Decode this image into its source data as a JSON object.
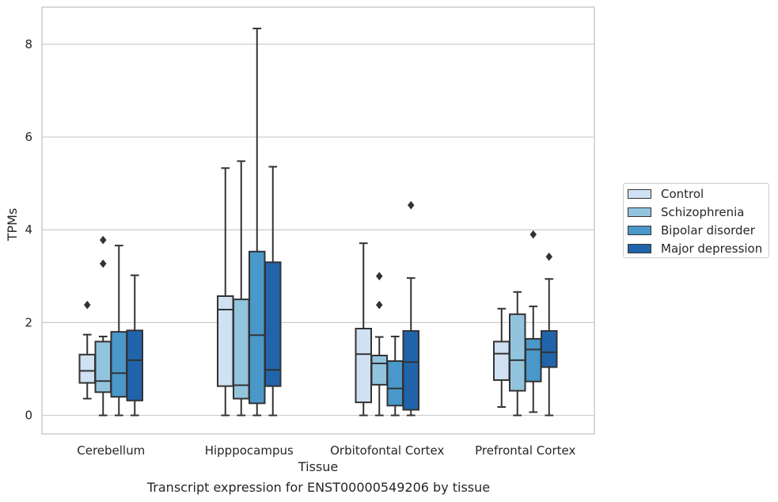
{
  "chart_data": {
    "type": "boxplot",
    "xlabel": "Tissue",
    "ylabel": "TPMs",
    "ylim": [
      -0.4,
      8.8
    ],
    "yticks": [
      0,
      2,
      4,
      6,
      8
    ],
    "grid": true,
    "legend_position": "right",
    "caption": "Transcript expression for ENST00000549206 by tissue",
    "categories": [
      "Cerebellum",
      "Hipppocampus",
      "Orbitofontal Cortex",
      "Prefrontal Cortex"
    ],
    "series": [
      {
        "name": "Control",
        "color": "#cfe1f2",
        "boxes": [
          {
            "whislo": 0.36,
            "q1": 0.7,
            "med": 0.96,
            "q3": 1.31,
            "whishi": 1.74,
            "fliers": [
              2.38
            ]
          },
          {
            "whislo": 0.0,
            "q1": 0.63,
            "med": 2.28,
            "q3": 2.57,
            "whishi": 5.33,
            "fliers": []
          },
          {
            "whislo": 0.0,
            "q1": 0.28,
            "med": 1.32,
            "q3": 1.87,
            "whishi": 3.71,
            "fliers": []
          },
          {
            "whislo": 0.18,
            "q1": 0.76,
            "med": 1.33,
            "q3": 1.59,
            "whishi": 2.3,
            "fliers": []
          }
        ]
      },
      {
        "name": "Schizophrenia",
        "color": "#93c4de",
        "boxes": [
          {
            "whislo": 0.0,
            "q1": 0.5,
            "med": 0.74,
            "q3": 1.59,
            "whishi": 1.7,
            "fliers": [
              3.27,
              3.78
            ]
          },
          {
            "whislo": 0.0,
            "q1": 0.36,
            "med": 0.65,
            "q3": 2.5,
            "whishi": 5.48,
            "fliers": []
          },
          {
            "whislo": 0.0,
            "q1": 0.66,
            "med": 1.12,
            "q3": 1.29,
            "whishi": 1.69,
            "fliers": [
              2.38,
              3.0
            ]
          },
          {
            "whislo": 0.0,
            "q1": 0.53,
            "med": 1.19,
            "q3": 2.18,
            "whishi": 2.66,
            "fliers": []
          }
        ]
      },
      {
        "name": "Bipolar disorder",
        "color": "#4a98c9",
        "boxes": [
          {
            "whislo": 0.0,
            "q1": 0.4,
            "med": 0.91,
            "q3": 1.8,
            "whishi": 3.66,
            "fliers": []
          },
          {
            "whislo": 0.0,
            "q1": 0.26,
            "med": 1.73,
            "q3": 3.53,
            "whishi": 8.34,
            "fliers": []
          },
          {
            "whislo": 0.0,
            "q1": 0.21,
            "med": 0.58,
            "q3": 1.17,
            "whishi": 1.7,
            "fliers": []
          },
          {
            "whislo": 0.07,
            "q1": 0.73,
            "med": 1.42,
            "q3": 1.65,
            "whishi": 2.35,
            "fliers": [
              3.9
            ]
          }
        ]
      },
      {
        "name": "Major depression",
        "color": "#2164ab",
        "boxes": [
          {
            "whislo": 0.0,
            "q1": 0.32,
            "med": 1.19,
            "q3": 1.83,
            "whishi": 3.02,
            "fliers": []
          },
          {
            "whislo": 0.0,
            "q1": 0.63,
            "med": 0.98,
            "q3": 3.3,
            "whishi": 5.36,
            "fliers": []
          },
          {
            "whislo": 0.0,
            "q1": 0.12,
            "med": 1.15,
            "q3": 1.82,
            "whishi": 2.96,
            "fliers": [
              4.53
            ]
          },
          {
            "whislo": 0.0,
            "q1": 1.04,
            "med": 1.36,
            "q3": 1.82,
            "whishi": 2.94,
            "fliers": [
              3.42
            ]
          }
        ]
      }
    ]
  }
}
